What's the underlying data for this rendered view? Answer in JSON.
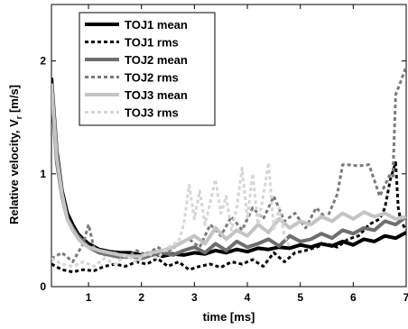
{
  "chart_data": {
    "type": "line",
    "xlabel": "time [ms]",
    "ylabel_main": "Relative velocity, V",
    "ylabel_sub": "r",
    "ylabel_unit": " [m/s]",
    "xlim": [
      0.3,
      7.0
    ],
    "ylim": [
      0,
      2.5
    ],
    "xticks": [
      1,
      2,
      3,
      4,
      5,
      6,
      7
    ],
    "yticks": [
      0,
      1,
      2
    ],
    "grid": false,
    "legend_position": "top-left",
    "series": [
      {
        "name": "TOJ1 mean",
        "color": "#000000",
        "dash": "solid",
        "x": [
          0.3,
          0.4,
          0.5,
          0.6,
          0.7,
          0.8,
          0.9,
          1.0,
          1.2,
          1.4,
          1.6,
          1.8,
          2.0,
          2.2,
          2.4,
          2.6,
          2.8,
          3.0,
          3.2,
          3.4,
          3.6,
          3.8,
          4.0,
          4.2,
          4.4,
          4.6,
          4.8,
          5.0,
          5.2,
          5.4,
          5.6,
          5.8,
          6.0,
          6.2,
          6.4,
          6.6,
          6.8,
          7.0
        ],
        "y": [
          1.85,
          1.2,
          0.85,
          0.65,
          0.55,
          0.47,
          0.42,
          0.38,
          0.33,
          0.31,
          0.3,
          0.3,
          0.28,
          0.3,
          0.27,
          0.29,
          0.28,
          0.3,
          0.29,
          0.32,
          0.3,
          0.33,
          0.31,
          0.34,
          0.33,
          0.35,
          0.34,
          0.37,
          0.35,
          0.38,
          0.36,
          0.4,
          0.37,
          0.42,
          0.4,
          0.45,
          0.43,
          0.48
        ]
      },
      {
        "name": "TOJ1 rms",
        "color": "#000000",
        "dash": "dotted",
        "x": [
          0.3,
          0.5,
          0.7,
          0.9,
          1.1,
          1.3,
          1.5,
          1.7,
          1.9,
          2.1,
          2.3,
          2.5,
          2.7,
          2.9,
          3.1,
          3.3,
          3.5,
          3.7,
          3.9,
          4.1,
          4.3,
          4.5,
          4.7,
          4.9,
          5.1,
          5.3,
          5.5,
          5.7,
          5.9,
          6.1,
          6.3,
          6.5,
          6.6,
          6.7,
          6.8,
          6.85,
          6.9,
          7.0
        ],
        "y": [
          0.2,
          0.15,
          0.13,
          0.15,
          0.14,
          0.18,
          0.2,
          0.18,
          0.22,
          0.2,
          0.25,
          0.18,
          0.22,
          0.15,
          0.18,
          0.2,
          0.17,
          0.22,
          0.2,
          0.24,
          0.18,
          0.3,
          0.22,
          0.3,
          0.32,
          0.35,
          0.38,
          0.35,
          0.42,
          0.45,
          0.55,
          0.6,
          0.7,
          0.95,
          1.1,
          0.7,
          0.58,
          0.5
        ]
      },
      {
        "name": "TOJ2 mean",
        "color": "#6e6e6e",
        "dash": "solid",
        "x": [
          0.3,
          0.4,
          0.5,
          0.6,
          0.7,
          0.8,
          0.9,
          1.0,
          1.2,
          1.4,
          1.6,
          1.8,
          2.0,
          2.2,
          2.4,
          2.6,
          2.8,
          3.0,
          3.2,
          3.4,
          3.6,
          3.8,
          4.0,
          4.2,
          4.4,
          4.6,
          4.8,
          5.0,
          5.2,
          5.4,
          5.6,
          5.8,
          6.0,
          6.2,
          6.4,
          6.6,
          6.8,
          7.0
        ],
        "y": [
          1.75,
          1.1,
          0.8,
          0.6,
          0.52,
          0.45,
          0.4,
          0.35,
          0.3,
          0.28,
          0.26,
          0.27,
          0.25,
          0.28,
          0.3,
          0.28,
          0.32,
          0.35,
          0.3,
          0.38,
          0.32,
          0.4,
          0.35,
          0.38,
          0.42,
          0.36,
          0.45,
          0.4,
          0.42,
          0.47,
          0.43,
          0.5,
          0.47,
          0.52,
          0.5,
          0.58,
          0.55,
          0.62
        ]
      },
      {
        "name": "TOJ2 rms",
        "color": "#7a7a7a",
        "dash": "dotted",
        "x": [
          0.3,
          0.5,
          0.7,
          0.9,
          1.0,
          1.1,
          1.3,
          1.5,
          1.7,
          1.9,
          2.1,
          2.3,
          2.5,
          2.7,
          2.9,
          3.1,
          3.3,
          3.5,
          3.7,
          3.9,
          4.1,
          4.3,
          4.5,
          4.7,
          4.9,
          5.1,
          5.3,
          5.5,
          5.7,
          5.8,
          5.9,
          6.1,
          6.3,
          6.5,
          6.7,
          6.75,
          6.8,
          6.9,
          7.0
        ],
        "y": [
          0.25,
          0.3,
          0.22,
          0.38,
          0.55,
          0.35,
          0.28,
          0.3,
          0.25,
          0.32,
          0.28,
          0.35,
          0.3,
          0.38,
          0.42,
          0.35,
          0.55,
          0.45,
          0.62,
          0.5,
          0.7,
          0.6,
          0.8,
          0.58,
          0.65,
          0.52,
          0.7,
          0.6,
          0.82,
          1.08,
          1.08,
          1.07,
          1.08,
          0.8,
          1.0,
          0.98,
          1.7,
          1.82,
          1.95
        ]
      },
      {
        "name": "TOJ3 mean",
        "color": "#c4c4c4",
        "dash": "solid",
        "x": [
          0.3,
          0.4,
          0.5,
          0.6,
          0.7,
          0.8,
          0.9,
          1.0,
          1.2,
          1.4,
          1.6,
          1.8,
          2.0,
          2.2,
          2.4,
          2.6,
          2.8,
          3.0,
          3.2,
          3.4,
          3.6,
          3.8,
          4.0,
          4.2,
          4.4,
          4.6,
          4.8,
          5.0,
          5.2,
          5.4,
          5.6,
          5.8,
          6.0,
          6.2,
          6.4,
          6.6,
          6.8,
          7.0
        ],
        "y": [
          1.8,
          1.15,
          0.82,
          0.6,
          0.5,
          0.43,
          0.38,
          0.35,
          0.32,
          0.3,
          0.28,
          0.27,
          0.27,
          0.3,
          0.32,
          0.35,
          0.4,
          0.45,
          0.38,
          0.52,
          0.42,
          0.5,
          0.45,
          0.55,
          0.48,
          0.6,
          0.52,
          0.58,
          0.55,
          0.62,
          0.58,
          0.65,
          0.6,
          0.66,
          0.62,
          0.65,
          0.6,
          0.62
        ]
      },
      {
        "name": "TOJ3 rms",
        "color": "#d6d6d6",
        "dash": "dotted",
        "x": [
          0.3,
          0.5,
          0.7,
          0.9,
          1.1,
          1.3,
          1.5,
          1.7,
          1.9,
          2.1,
          2.3,
          2.5,
          2.7,
          2.8,
          2.9,
          3.0,
          3.1,
          3.2,
          3.3,
          3.4,
          3.5,
          3.6,
          3.7,
          3.8,
          3.9,
          4.0,
          4.1,
          4.2,
          4.3,
          4.4,
          4.5,
          4.6,
          4.7,
          4.8
        ],
        "y": [
          0.25,
          0.2,
          0.18,
          0.22,
          0.18,
          0.25,
          0.2,
          0.28,
          0.22,
          0.3,
          0.25,
          0.35,
          0.4,
          0.55,
          0.9,
          0.6,
          0.85,
          0.55,
          0.75,
          0.95,
          0.65,
          0.8,
          0.5,
          0.7,
          1.05,
          0.6,
          1.0,
          0.55,
          0.8,
          1.1,
          0.5,
          0.7,
          0.45,
          0.35
        ]
      }
    ]
  }
}
